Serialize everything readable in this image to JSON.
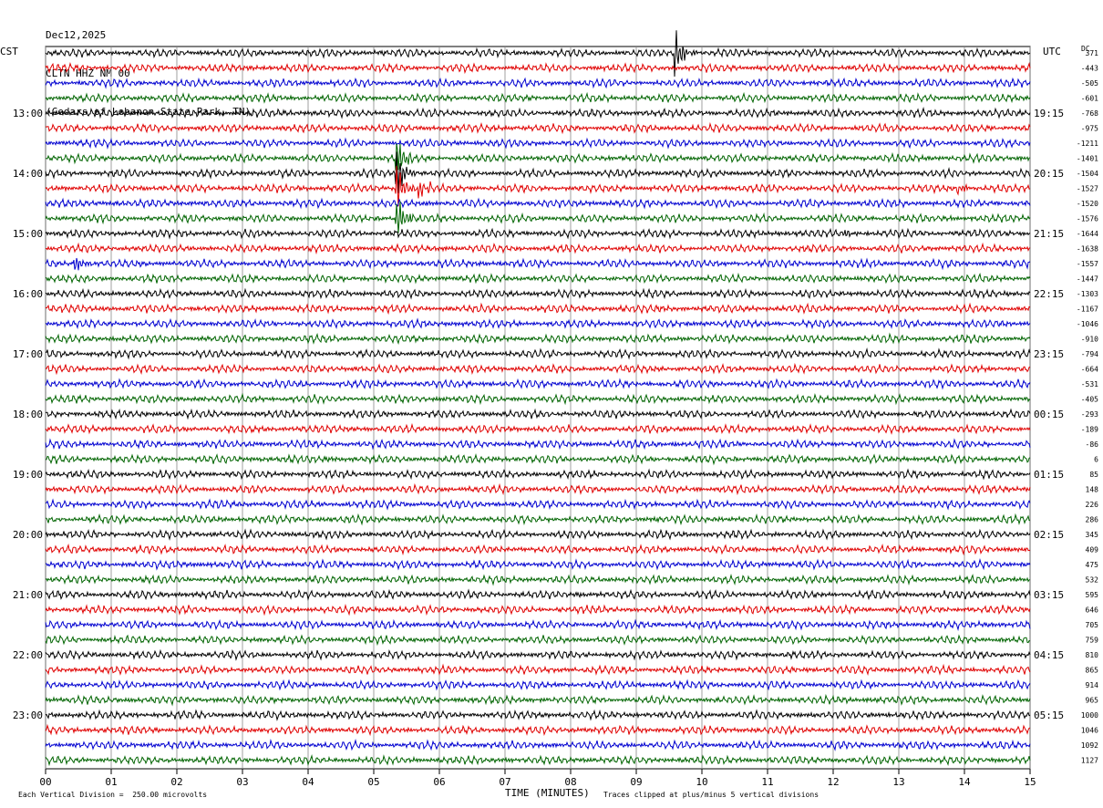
{
  "header": {
    "date": "Dec12,2025",
    "station": "CLTN HHZ NM 00",
    "location": "(Cedars of Lebanon State Park, TN)"
  },
  "left_tz": "CST",
  "right_tz": "UTC",
  "dc_label": "DC",
  "footer": {
    "scale_note": "Each Vertical Division =  250.00 microvolts",
    "xlabel": "TIME (MINUTES)",
    "clip_note": "Traces clipped at plus/minus 5 vertical divisions"
  },
  "chart_data": {
    "type": "line",
    "title": "",
    "xlabel": "TIME (MINUTES)",
    "xlim": [
      0,
      15
    ],
    "x_ticks": [
      "00",
      "01",
      "02",
      "03",
      "04",
      "05",
      "06",
      "07",
      "08",
      "09",
      "10",
      "11",
      "12",
      "13",
      "14",
      "15"
    ],
    "trace_colors": [
      "#000000",
      "#e00000",
      "#0000d0",
      "#006400"
    ],
    "left_hour_labels": [
      "13:00",
      "14:00",
      "15:00",
      "16:00",
      "17:00",
      "18:00",
      "19:00",
      "20:00",
      "21:00",
      "22:00",
      "23:00"
    ],
    "right_hour_labels": [
      "19:15",
      "20:15",
      "21:15",
      "22:15",
      "23:15",
      "00:15",
      "01:15",
      "02:15",
      "03:15",
      "04:15",
      "05:15"
    ],
    "dc_offsets": [
      "371",
      "-443",
      "-505",
      "-601",
      "-768",
      "-975",
      "-1211",
      "-1401",
      "-1504",
      "-1527",
      "-1520",
      "-1576",
      "-1644",
      "-1638",
      "-1557",
      "-1447",
      "-1303",
      "-1167",
      "-1046",
      "-910",
      "-794",
      "-664",
      "-531",
      "-405",
      "-293",
      "-189",
      "-86",
      "6",
      "85",
      "148",
      "226",
      "286",
      "345",
      "409",
      "475",
      "532",
      "595",
      "646",
      "705",
      "759",
      "810",
      "865",
      "914",
      "965",
      "1000",
      "1046",
      "1092",
      "1127"
    ],
    "events": [
      {
        "trace": 0,
        "minute": 9.6,
        "amplitude": "large"
      },
      {
        "trace": 8,
        "minute": 5.35,
        "amplitude": "large"
      },
      {
        "trace": 7,
        "minute": 5.35,
        "amplitude": "large"
      },
      {
        "trace": 9,
        "minute": 5.35,
        "amplitude": "large"
      },
      {
        "trace": 11,
        "minute": 5.35,
        "amplitude": "large"
      },
      {
        "trace": 9,
        "minute": 5.7,
        "amplitude": "medium"
      },
      {
        "trace": 14,
        "minute": 0.45,
        "amplitude": "medium"
      },
      {
        "trace": 12,
        "minute": 12.15,
        "amplitude": "small"
      },
      {
        "trace": 9,
        "minute": 13.9,
        "amplitude": "small"
      }
    ]
  }
}
